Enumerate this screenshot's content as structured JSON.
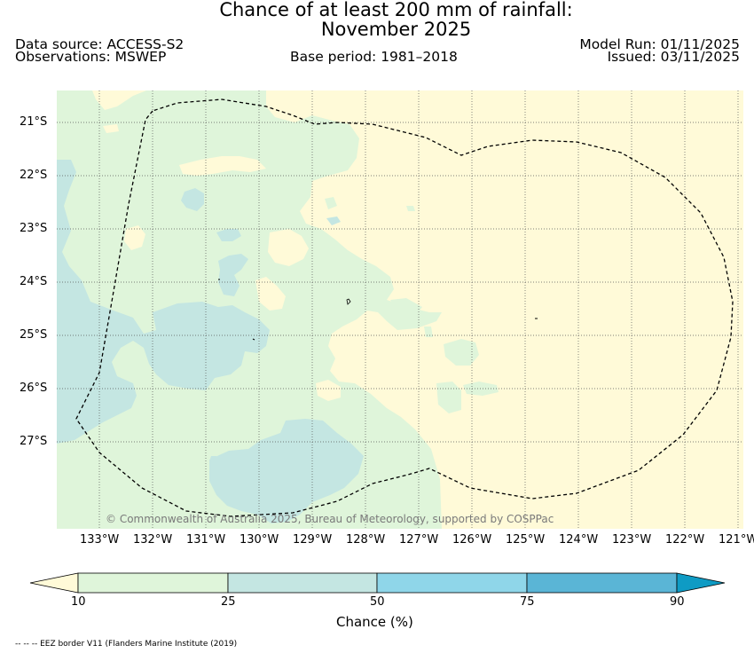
{
  "title": {
    "line1": "Chance of at least 200 mm of rainfall:",
    "line2": "November 2025"
  },
  "header": {
    "data_source": "Data source: ACCESS-S2",
    "observations": "Observations: MSWEP",
    "base_period": "Base period: 1981–2018",
    "model_run": "Model Run: 01/11/2025",
    "issued": "Issued: 03/11/2025"
  },
  "map": {
    "copyright": "© Commonwealth of Australia 2025, Bureau of Meteorology, supported by COSPPac",
    "lat_labels": [
      "21°S",
      "22°S",
      "23°S",
      "24°S",
      "25°S",
      "26°S",
      "27°S"
    ],
    "lon_labels": [
      "133°W",
      "132°W",
      "131°W",
      "130°W",
      "129°W",
      "128°W",
      "127°W",
      "126°W",
      "125°W",
      "124°W",
      "123°W",
      "122°W",
      "121°W"
    ]
  },
  "colorbar": {
    "title": "Chance (%)",
    "ticks": [
      "10",
      "25",
      "50",
      "75",
      "90"
    ],
    "colors": {
      "below_10": "#fffad8",
      "10_25": "#dff5da",
      "25_50": "#c4e6e2",
      "50_75": "#8fd6e9",
      "75_90": "#5ab5d6",
      "above_90": "#0e9bc4"
    }
  },
  "footer": {
    "eez_note": "-- -- -- EEZ border V11 (Flanders Marine Institute (2019)"
  }
}
